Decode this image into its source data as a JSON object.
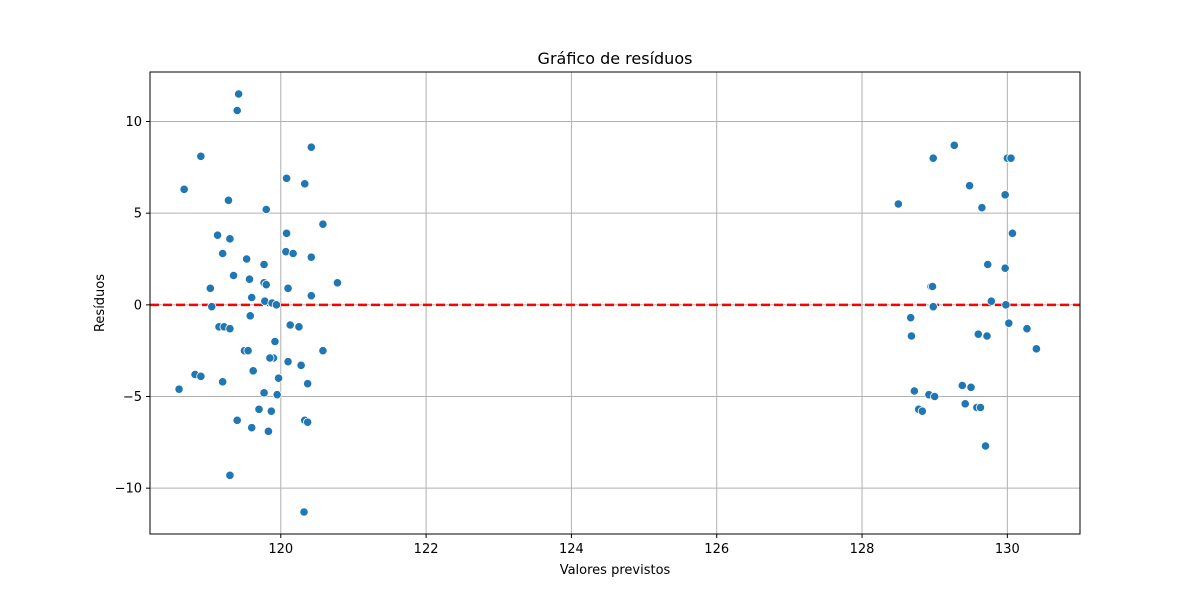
{
  "chart_data": {
    "type": "scatter",
    "title": "Gráfico de resíduos",
    "xlabel": "Valores previstos",
    "ylabel": "Resíduos",
    "xlim": [
      118.2,
      131.0
    ],
    "ylim": [
      -12.5,
      12.7
    ],
    "xticks": [
      120,
      122,
      124,
      126,
      128,
      130
    ],
    "yticks": [
      -10,
      -5,
      0,
      5,
      10
    ],
    "xtick_labels": [
      "120",
      "122",
      "124",
      "126",
      "128",
      "130"
    ],
    "ytick_labels": [
      "−10",
      "−5",
      "0",
      "5",
      "10"
    ],
    "grid": true,
    "reference_line": {
      "y": 0,
      "color": "#ff0000",
      "style": "dashed"
    },
    "marker_color": "#1f77b4",
    "points": [
      {
        "x": 119.42,
        "y": 11.5
      },
      {
        "x": 119.4,
        "y": 10.6
      },
      {
        "x": 120.42,
        "y": 8.6
      },
      {
        "x": 118.9,
        "y": 8.1
      },
      {
        "x": 120.08,
        "y": 6.9
      },
      {
        "x": 120.33,
        "y": 6.6
      },
      {
        "x": 118.67,
        "y": 6.3
      },
      {
        "x": 119.28,
        "y": 5.7
      },
      {
        "x": 119.8,
        "y": 5.2
      },
      {
        "x": 120.58,
        "y": 4.4
      },
      {
        "x": 120.08,
        "y": 3.9
      },
      {
        "x": 119.13,
        "y": 3.8
      },
      {
        "x": 119.3,
        "y": 3.6
      },
      {
        "x": 120.07,
        "y": 2.9
      },
      {
        "x": 120.17,
        "y": 2.8
      },
      {
        "x": 119.2,
        "y": 2.8
      },
      {
        "x": 120.42,
        "y": 2.6
      },
      {
        "x": 119.53,
        "y": 2.5
      },
      {
        "x": 119.77,
        "y": 2.2
      },
      {
        "x": 119.35,
        "y": 1.6
      },
      {
        "x": 119.57,
        "y": 1.4
      },
      {
        "x": 120.78,
        "y": 1.2
      },
      {
        "x": 119.77,
        "y": 1.2
      },
      {
        "x": 119.8,
        "y": 1.1
      },
      {
        "x": 119.03,
        "y": 0.9
      },
      {
        "x": 120.1,
        "y": 0.9
      },
      {
        "x": 120.42,
        "y": 0.5
      },
      {
        "x": 119.6,
        "y": 0.4
      },
      {
        "x": 119.78,
        "y": 0.2
      },
      {
        "x": 119.88,
        "y": 0.1
      },
      {
        "x": 119.94,
        "y": 0.0
      },
      {
        "x": 119.05,
        "y": -0.1
      },
      {
        "x": 119.58,
        "y": -0.6
      },
      {
        "x": 120.13,
        "y": -1.1
      },
      {
        "x": 119.15,
        "y": -1.2
      },
      {
        "x": 120.25,
        "y": -1.2
      },
      {
        "x": 119.22,
        "y": -1.2
      },
      {
        "x": 119.3,
        "y": -1.3
      },
      {
        "x": 119.92,
        "y": -2.0
      },
      {
        "x": 119.5,
        "y": -2.5
      },
      {
        "x": 119.55,
        "y": -2.5
      },
      {
        "x": 120.58,
        "y": -2.5
      },
      {
        "x": 119.9,
        "y": -2.9
      },
      {
        "x": 119.85,
        "y": -2.9
      },
      {
        "x": 120.1,
        "y": -3.1
      },
      {
        "x": 120.28,
        "y": -3.3
      },
      {
        "x": 119.62,
        "y": -3.6
      },
      {
        "x": 118.82,
        "y": -3.8
      },
      {
        "x": 118.9,
        "y": -3.9
      },
      {
        "x": 119.97,
        "y": -4.0
      },
      {
        "x": 119.2,
        "y": -4.2
      },
      {
        "x": 120.37,
        "y": -4.3
      },
      {
        "x": 118.6,
        "y": -4.6
      },
      {
        "x": 119.77,
        "y": -4.8
      },
      {
        "x": 119.95,
        "y": -4.9
      },
      {
        "x": 119.7,
        "y": -5.7
      },
      {
        "x": 119.87,
        "y": -5.8
      },
      {
        "x": 119.4,
        "y": -6.3
      },
      {
        "x": 120.33,
        "y": -6.3
      },
      {
        "x": 120.37,
        "y": -6.4
      },
      {
        "x": 119.6,
        "y": -6.7
      },
      {
        "x": 119.83,
        "y": -6.9
      },
      {
        "x": 119.3,
        "y": -9.3
      },
      {
        "x": 120.32,
        "y": -11.3
      },
      {
        "x": 129.27,
        "y": 8.7
      },
      {
        "x": 128.98,
        "y": 8.0
      },
      {
        "x": 130.0,
        "y": 8.0
      },
      {
        "x": 130.05,
        "y": 8.0
      },
      {
        "x": 129.48,
        "y": 6.5
      },
      {
        "x": 129.97,
        "y": 6.0
      },
      {
        "x": 128.5,
        "y": 5.5
      },
      {
        "x": 129.65,
        "y": 5.3
      },
      {
        "x": 130.07,
        "y": 3.9
      },
      {
        "x": 129.73,
        "y": 2.2
      },
      {
        "x": 129.97,
        "y": 2.0
      },
      {
        "x": 128.95,
        "y": 1.0
      },
      {
        "x": 128.97,
        "y": 1.0
      },
      {
        "x": 129.78,
        "y": 0.2
      },
      {
        "x": 129.98,
        "y": 0.0
      },
      {
        "x": 128.98,
        "y": -0.1
      },
      {
        "x": 128.67,
        "y": -0.7
      },
      {
        "x": 130.02,
        "y": -1.0
      },
      {
        "x": 130.27,
        "y": -1.3
      },
      {
        "x": 129.6,
        "y": -1.6
      },
      {
        "x": 128.68,
        "y": -1.7
      },
      {
        "x": 129.72,
        "y": -1.7
      },
      {
        "x": 130.4,
        "y": -2.4
      },
      {
        "x": 129.38,
        "y": -4.4
      },
      {
        "x": 129.5,
        "y": -4.5
      },
      {
        "x": 128.72,
        "y": -4.7
      },
      {
        "x": 128.92,
        "y": -4.9
      },
      {
        "x": 129.0,
        "y": -5.0
      },
      {
        "x": 129.42,
        "y": -5.4
      },
      {
        "x": 129.58,
        "y": -5.6
      },
      {
        "x": 129.63,
        "y": -5.6
      },
      {
        "x": 128.78,
        "y": -5.7
      },
      {
        "x": 128.83,
        "y": -5.8
      },
      {
        "x": 129.7,
        "y": -7.7
      }
    ]
  }
}
